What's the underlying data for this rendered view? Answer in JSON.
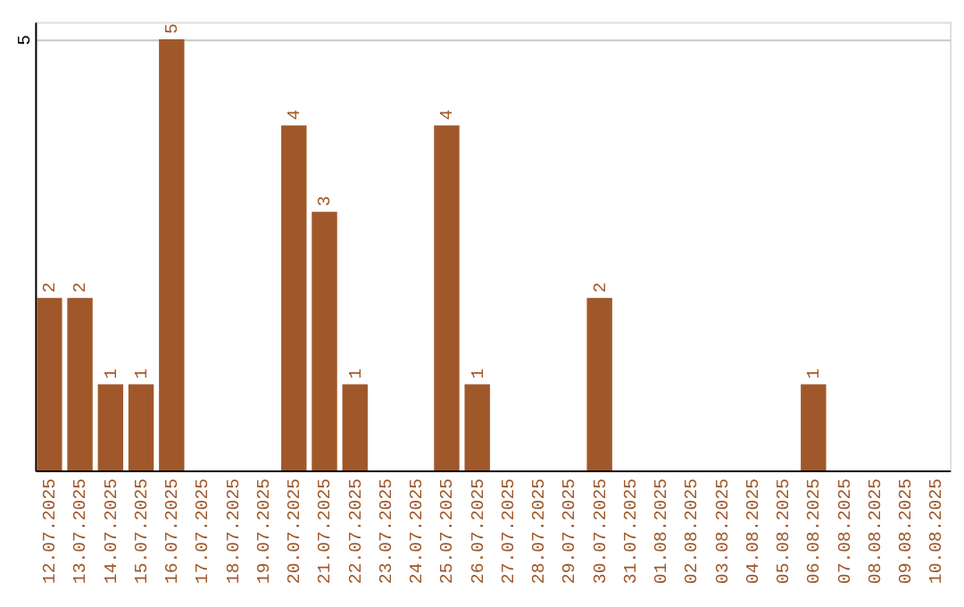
{
  "chart_data": {
    "type": "bar",
    "categories": [
      "12.07.2025",
      "13.07.2025",
      "14.07.2025",
      "15.07.2025",
      "16.07.2025",
      "17.07.2025",
      "18.07.2025",
      "19.07.2025",
      "20.07.2025",
      "21.07.2025",
      "22.07.2025",
      "23.07.2025",
      "24.07.2025",
      "25.07.2025",
      "26.07.2025",
      "27.07.2025",
      "28.07.2025",
      "29.07.2025",
      "30.07.2025",
      "31.07.2025",
      "01.08.2025",
      "02.08.2025",
      "03.08.2025",
      "04.08.2025",
      "05.08.2025",
      "06.08.2025",
      "07.08.2025",
      "08.08.2025",
      "09.08.2025",
      "10.08.2025"
    ],
    "values": [
      2,
      2,
      1,
      1,
      5,
      0,
      0,
      0,
      4,
      3,
      1,
      0,
      0,
      4,
      1,
      0,
      0,
      0,
      2,
      0,
      0,
      0,
      0,
      0,
      0,
      1,
      0,
      0,
      0,
      0
    ],
    "value_labels": [
      "2",
      "2",
      "1",
      "1",
      "5",
      null,
      null,
      null,
      "4",
      "3",
      "1",
      null,
      null,
      "4",
      "1",
      null,
      null,
      null,
      "2",
      null,
      null,
      null,
      null,
      null,
      null,
      "1",
      null,
      null,
      null,
      null
    ],
    "color": "#a0582a",
    "ylim": [
      0,
      5.2
    ],
    "yticks": [
      5
    ],
    "grid": "y"
  }
}
